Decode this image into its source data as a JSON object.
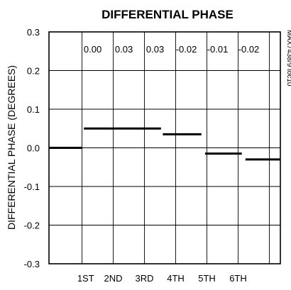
{
  "chart_data": {
    "type": "line",
    "title": "DIFFERENTIAL PHASE",
    "ylabel": "DIFFERENTIAL PHASE (DEGREES)",
    "xlabel": "",
    "side_note": "MAX7438/9 toc10",
    "categories": [
      "1ST",
      "2ND",
      "3RD",
      "4TH",
      "5TH",
      "6TH"
    ],
    "top_values_text": [
      "0.00",
      "0.03",
      "0.03",
      "-0.02",
      "-0.01",
      "-0.02"
    ],
    "ylim": [
      -0.3,
      0.3
    ],
    "yticks": [
      0.3,
      0.2,
      0.1,
      0.0,
      -0.1,
      -0.2,
      -0.3
    ],
    "ytick_labels": [
      "0.3",
      "0.2",
      "0.1",
      "0.0",
      "-0.1",
      "-0.2",
      "-0.3"
    ],
    "grid": true,
    "segments": [
      {
        "x_start": 0.0,
        "x_end": 0.9,
        "y": 0.0
      },
      {
        "x_start": 0.95,
        "x_end": 3.05,
        "y": 0.05
      },
      {
        "x_start": 3.1,
        "x_end": 4.15,
        "y": 0.035
      },
      {
        "x_start": 4.25,
        "x_end": 5.25,
        "y": -0.015
      },
      {
        "x_start": 5.35,
        "x_end": 6.3,
        "y": -0.03
      }
    ],
    "x_domain": [
      0,
      6.3
    ],
    "x_tick_positions": [
      0.9,
      1.75,
      2.6,
      3.45,
      4.3,
      5.15
    ],
    "x_label_positions": [
      1.0,
      1.75,
      2.6,
      3.45,
      4.3,
      5.15
    ],
    "x_grid_positions": [
      0.9,
      1.75,
      2.6,
      3.45,
      4.3,
      5.15,
      6.0
    ]
  }
}
